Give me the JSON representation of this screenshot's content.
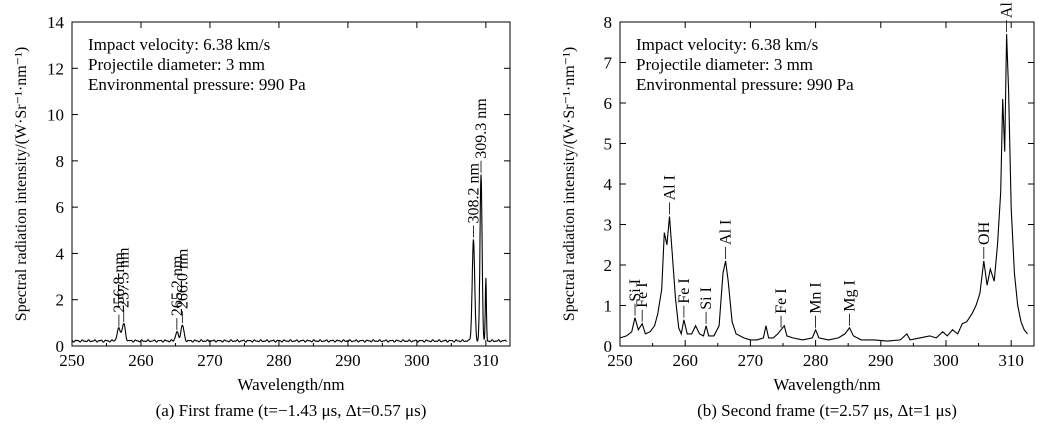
{
  "chart_data": [
    {
      "type": "line",
      "ylabel": "Spectral radiation intensity/(W·Sr⁻¹·nm⁻¹)",
      "xlabel": "Wavelength/nm",
      "caption": "(a) First frame (t=−1.43 μs, Δt=0.57 μs)",
      "info_lines": [
        "Impact velocity: 6.38 km/s",
        "Projectile diameter: 3 mm",
        "Environmental pressure: 990 Pa"
      ],
      "xlim": [
        250,
        313.5
      ],
      "ylim": [
        0,
        14
      ],
      "xticks": [
        250,
        260,
        270,
        280,
        290,
        300,
        310
      ],
      "yticks": [
        0,
        2,
        4,
        6,
        8,
        10,
        12,
        14
      ],
      "baseline": 0.22,
      "peaks": [
        {
          "x": 256.8,
          "y": 0.75,
          "w": 0.25
        },
        {
          "x": 257.5,
          "y": 0.95,
          "w": 0.22
        },
        {
          "x": 265.2,
          "y": 0.6,
          "w": 0.2
        },
        {
          "x": 266.0,
          "y": 0.9,
          "w": 0.22
        },
        {
          "x": 308.2,
          "y": 4.6,
          "w": 0.18
        },
        {
          "x": 309.3,
          "y": 7.4,
          "w": 0.15
        },
        {
          "x": 310.0,
          "y": 2.9,
          "w": 0.08
        }
      ],
      "annotations": [
        {
          "text": "256.8 nm",
          "x": 256.8,
          "y": 0.75
        },
        {
          "text": "257.5 nm",
          "x": 257.5,
          "y": 0.95
        },
        {
          "text": "265.2 nm",
          "x": 265.2,
          "y": 0.6
        },
        {
          "text": "266.0 nm",
          "x": 266.0,
          "y": 0.9
        },
        {
          "text": "308.2 nm",
          "x": 308.2,
          "y": 4.6
        },
        {
          "text": "309.3 nm",
          "x": 309.3,
          "y": 7.4
        }
      ]
    },
    {
      "type": "line",
      "ylabel": "Spectral radiation intensity/(W·Sr⁻¹·nm⁻¹)",
      "xlabel": "Wavelength/nm",
      "caption": "(b) Second frame (t=2.57 μs, Δt=1 μs)",
      "info_lines": [
        "Impact velocity: 6.38 km/s",
        "Projectile diameter: 3 mm",
        "Environmental pressure: 990 Pa"
      ],
      "xlim": [
        250,
        313.5
      ],
      "ylim": [
        0,
        8
      ],
      "xticks": [
        250,
        260,
        270,
        280,
        290,
        300,
        310
      ],
      "yticks": [
        0,
        1,
        2,
        3,
        4,
        5,
        6,
        7,
        8
      ],
      "points": [
        [
          250,
          0.2
        ],
        [
          251,
          0.25
        ],
        [
          251.8,
          0.35
        ],
        [
          252.3,
          0.7
        ],
        [
          252.8,
          0.4
        ],
        [
          253.4,
          0.55
        ],
        [
          253.9,
          0.3
        ],
        [
          254.6,
          0.35
        ],
        [
          255.3,
          0.5
        ],
        [
          255.8,
          0.8
        ],
        [
          256.4,
          1.4
        ],
        [
          256.8,
          2.8
        ],
        [
          257.2,
          2.5
        ],
        [
          257.6,
          3.2
        ],
        [
          258.0,
          2.3
        ],
        [
          258.5,
          1.2
        ],
        [
          259.0,
          0.45
        ],
        [
          259.4,
          0.3
        ],
        [
          259.8,
          0.65
        ],
        [
          260.3,
          0.3
        ],
        [
          261.0,
          0.3
        ],
        [
          261.6,
          0.5
        ],
        [
          262.2,
          0.3
        ],
        [
          262.8,
          0.25
        ],
        [
          263.2,
          0.5
        ],
        [
          263.6,
          0.25
        ],
        [
          264.4,
          0.25
        ],
        [
          265.2,
          0.5
        ],
        [
          265.8,
          1.8
        ],
        [
          266.2,
          2.1
        ],
        [
          266.6,
          1.6
        ],
        [
          267.2,
          0.6
        ],
        [
          267.8,
          0.3
        ],
        [
          269,
          0.2
        ],
        [
          270,
          0.15
        ],
        [
          271,
          0.15
        ],
        [
          272,
          0.2
        ],
        [
          272.4,
          0.5
        ],
        [
          272.8,
          0.2
        ],
        [
          273.5,
          0.2
        ],
        [
          274.2,
          0.3
        ],
        [
          274.7,
          0.4
        ],
        [
          275.2,
          0.5
        ],
        [
          275.6,
          0.25
        ],
        [
          276.5,
          0.2
        ],
        [
          278,
          0.15
        ],
        [
          279.5,
          0.2
        ],
        [
          280,
          0.4
        ],
        [
          280.5,
          0.2
        ],
        [
          282,
          0.15
        ],
        [
          283.5,
          0.2
        ],
        [
          284.5,
          0.3
        ],
        [
          285.2,
          0.45
        ],
        [
          285.8,
          0.25
        ],
        [
          287,
          0.15
        ],
        [
          289,
          0.15
        ],
        [
          291,
          0.12
        ],
        [
          293,
          0.15
        ],
        [
          294,
          0.3
        ],
        [
          294.5,
          0.15
        ],
        [
          296,
          0.2
        ],
        [
          297.5,
          0.25
        ],
        [
          298.5,
          0.2
        ],
        [
          299.5,
          0.35
        ],
        [
          300.2,
          0.25
        ],
        [
          301,
          0.4
        ],
        [
          301.8,
          0.3
        ],
        [
          302.5,
          0.55
        ],
        [
          303.2,
          0.6
        ],
        [
          304.0,
          0.8
        ],
        [
          304.6,
          1.0
        ],
        [
          305.2,
          1.3
        ],
        [
          305.8,
          2.1
        ],
        [
          306.3,
          1.5
        ],
        [
          306.8,
          1.9
        ],
        [
          307.4,
          1.6
        ],
        [
          307.9,
          2.5
        ],
        [
          308.4,
          3.8
        ],
        [
          308.7,
          6.1
        ],
        [
          309.0,
          4.8
        ],
        [
          309.3,
          7.7
        ],
        [
          309.6,
          6.3
        ],
        [
          310.0,
          3.4
        ],
        [
          310.5,
          1.8
        ],
        [
          311.0,
          1.0
        ],
        [
          311.5,
          0.6
        ],
        [
          312.0,
          0.4
        ],
        [
          312.5,
          0.3
        ]
      ],
      "annotations": [
        {
          "text": "Si I",
          "x": 252.3,
          "y": 0.7
        },
        {
          "text": "Fe I",
          "x": 253.4,
          "y": 0.55
        },
        {
          "text": "Al I",
          "x": 257.6,
          "y": 3.2
        },
        {
          "text": "Fe I",
          "x": 259.8,
          "y": 0.65
        },
        {
          "text": "Si I",
          "x": 263.2,
          "y": 0.5
        },
        {
          "text": "Al I",
          "x": 266.2,
          "y": 2.1
        },
        {
          "text": "Fe I",
          "x": 274.7,
          "y": 0.4
        },
        {
          "text": "Mn I",
          "x": 280.0,
          "y": 0.4
        },
        {
          "text": "Mg I",
          "x": 285.2,
          "y": 0.45
        },
        {
          "text": "OH",
          "x": 305.8,
          "y": 2.1
        },
        {
          "text": "Al I",
          "x": 309.3,
          "y": 7.7
        }
      ]
    }
  ]
}
